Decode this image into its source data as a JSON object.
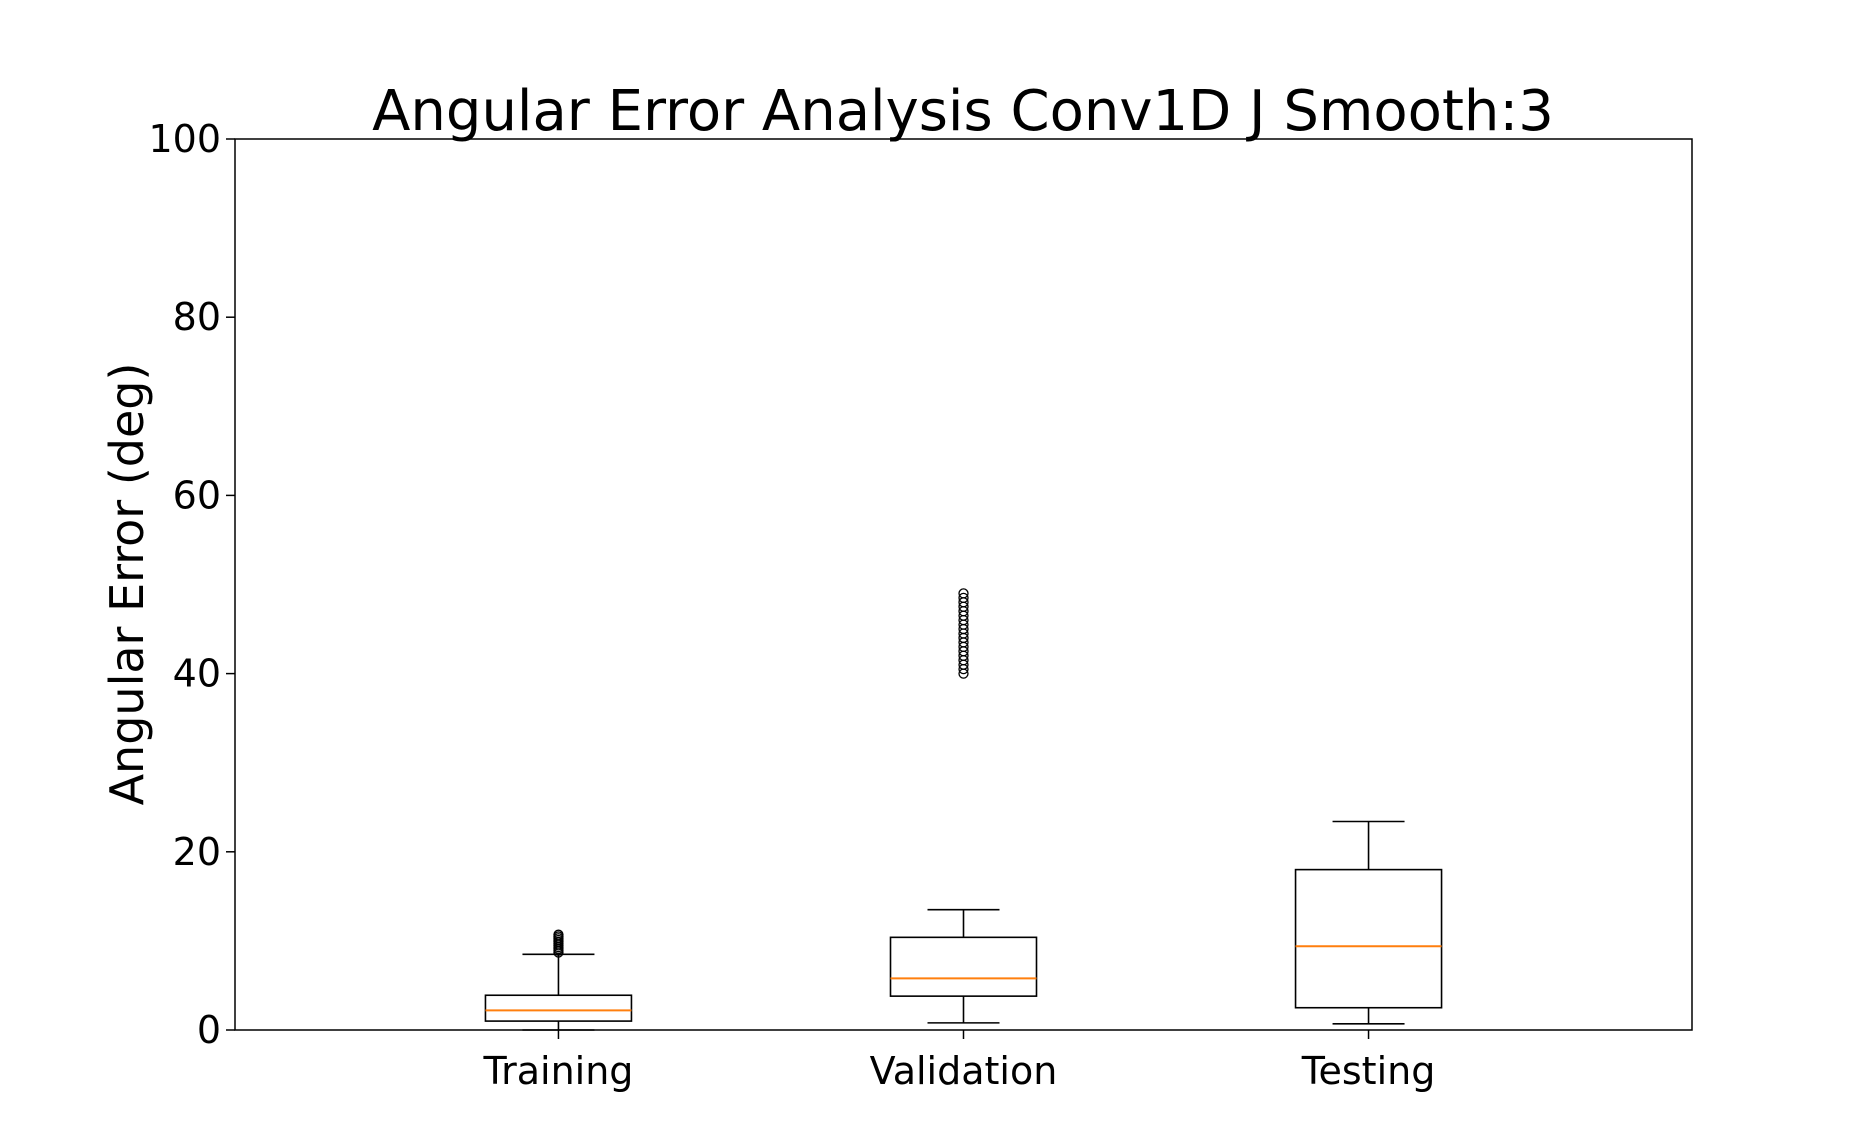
{
  "chart_data": {
    "type": "box",
    "title": "Angular Error Analysis Conv1D J Smooth:3",
    "xlabel": "",
    "ylabel": "Angular Error (deg)",
    "ylim": [
      0,
      100
    ],
    "yticks": [
      0,
      20,
      40,
      60,
      80,
      100
    ],
    "grid": false,
    "median_color": "#ff7f0e",
    "box_color": "#000000",
    "categories": [
      "Training",
      "Validation",
      "Testing"
    ],
    "boxes": [
      {
        "label": "Training",
        "whisker_low": 0.0,
        "q1": 1.0,
        "median": 2.2,
        "q3": 3.9,
        "whisker_high": 8.5,
        "fliers": [
          8.7,
          8.9,
          9.1,
          9.3,
          9.5,
          9.7,
          9.9,
          10.1,
          10.3,
          10.5,
          10.7
        ]
      },
      {
        "label": "Validation",
        "whisker_low": 0.8,
        "q1": 3.8,
        "median": 5.8,
        "q3": 10.4,
        "whisker_high": 13.5,
        "fliers": [
          40.0,
          40.5,
          41.0,
          41.5,
          42.0,
          42.5,
          43.0,
          43.5,
          44.0,
          44.5,
          45.0,
          45.5,
          46.0,
          46.5,
          47.0,
          47.5,
          48.0,
          48.5,
          49.0
        ]
      },
      {
        "label": "Testing",
        "whisker_low": 0.7,
        "q1": 2.5,
        "median": 9.4,
        "q3": 18.0,
        "whisker_high": 23.4,
        "fliers": []
      }
    ]
  }
}
